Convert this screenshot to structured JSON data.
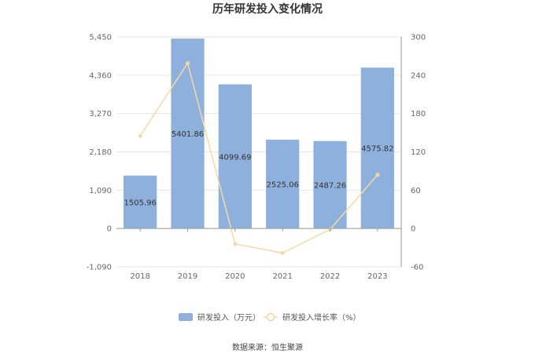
{
  "chart_data": {
    "type": "bar",
    "title": "历年研发投入变化情况",
    "categories": [
      "2018",
      "2019",
      "2020",
      "2021",
      "2022",
      "2023"
    ],
    "series": [
      {
        "name": "研发投入（万元）",
        "type": "bar",
        "axis": "left",
        "values": [
          1505.96,
          5401.86,
          4099.69,
          2525.06,
          2487.26,
          4575.82
        ],
        "color": "#8eb0dc"
      },
      {
        "name": "研发投入增长率（%）",
        "type": "line",
        "axis": "right",
        "values": [
          145,
          258.7,
          -24.1,
          -38.4,
          -1.5,
          84
        ],
        "color": "#f7d9a0"
      }
    ],
    "ylim_left": [
      -1090,
      5450
    ],
    "yticks_left": [
      "5,450",
      "4,360",
      "3,270",
      "2,180",
      "1,090",
      "0",
      "-1,090"
    ],
    "ylim_right": [
      -60,
      300
    ],
    "yticks_right": [
      "300",
      "240",
      "180",
      "120",
      "60",
      "0",
      "-60"
    ],
    "legend_position": "bottom",
    "source": "数据来源：恒生聚源"
  }
}
